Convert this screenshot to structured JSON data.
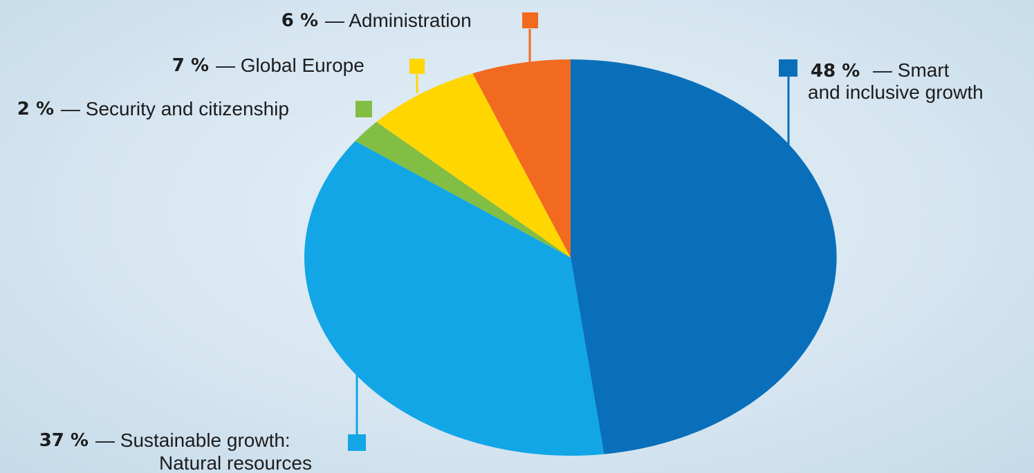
{
  "chart_data": {
    "type": "pie",
    "slices": [
      {
        "label": "Smart and inclusive growth",
        "value": 48,
        "display": "48 %",
        "color": "#0a6fba"
      },
      {
        "label": "Sustainable growth: Natural resources",
        "value": 37,
        "display": "37 %",
        "color": "#12a6e6"
      },
      {
        "label": "Security and citizenship",
        "value": 2,
        "display": "2 %",
        "color": "#82bd44"
      },
      {
        "label": "Global Europe",
        "value": 7,
        "display": "7 %",
        "color": "#ffd600"
      },
      {
        "label": "Administration",
        "value": 6,
        "display": "6 %",
        "color": "#f26a1f"
      }
    ],
    "labels": {
      "administration": {
        "pct": "6 %",
        "text": "— Administration"
      },
      "global_europe": {
        "pct": "7 %",
        "text": "— Global Europe"
      },
      "security": {
        "pct": "2 %",
        "text": "— Security and citizenship"
      },
      "smart": {
        "pct": "48 %",
        "text1": "— Smart",
        "text2": "and inclusive growth"
      },
      "sustainable": {
        "pct": "37 %",
        "text1": "— Sustainable growth:",
        "text2": "Natural resources"
      }
    },
    "slice_order": "clockwise from 12 o'clock",
    "legend": "labels beside colored square markers with leader lines"
  }
}
